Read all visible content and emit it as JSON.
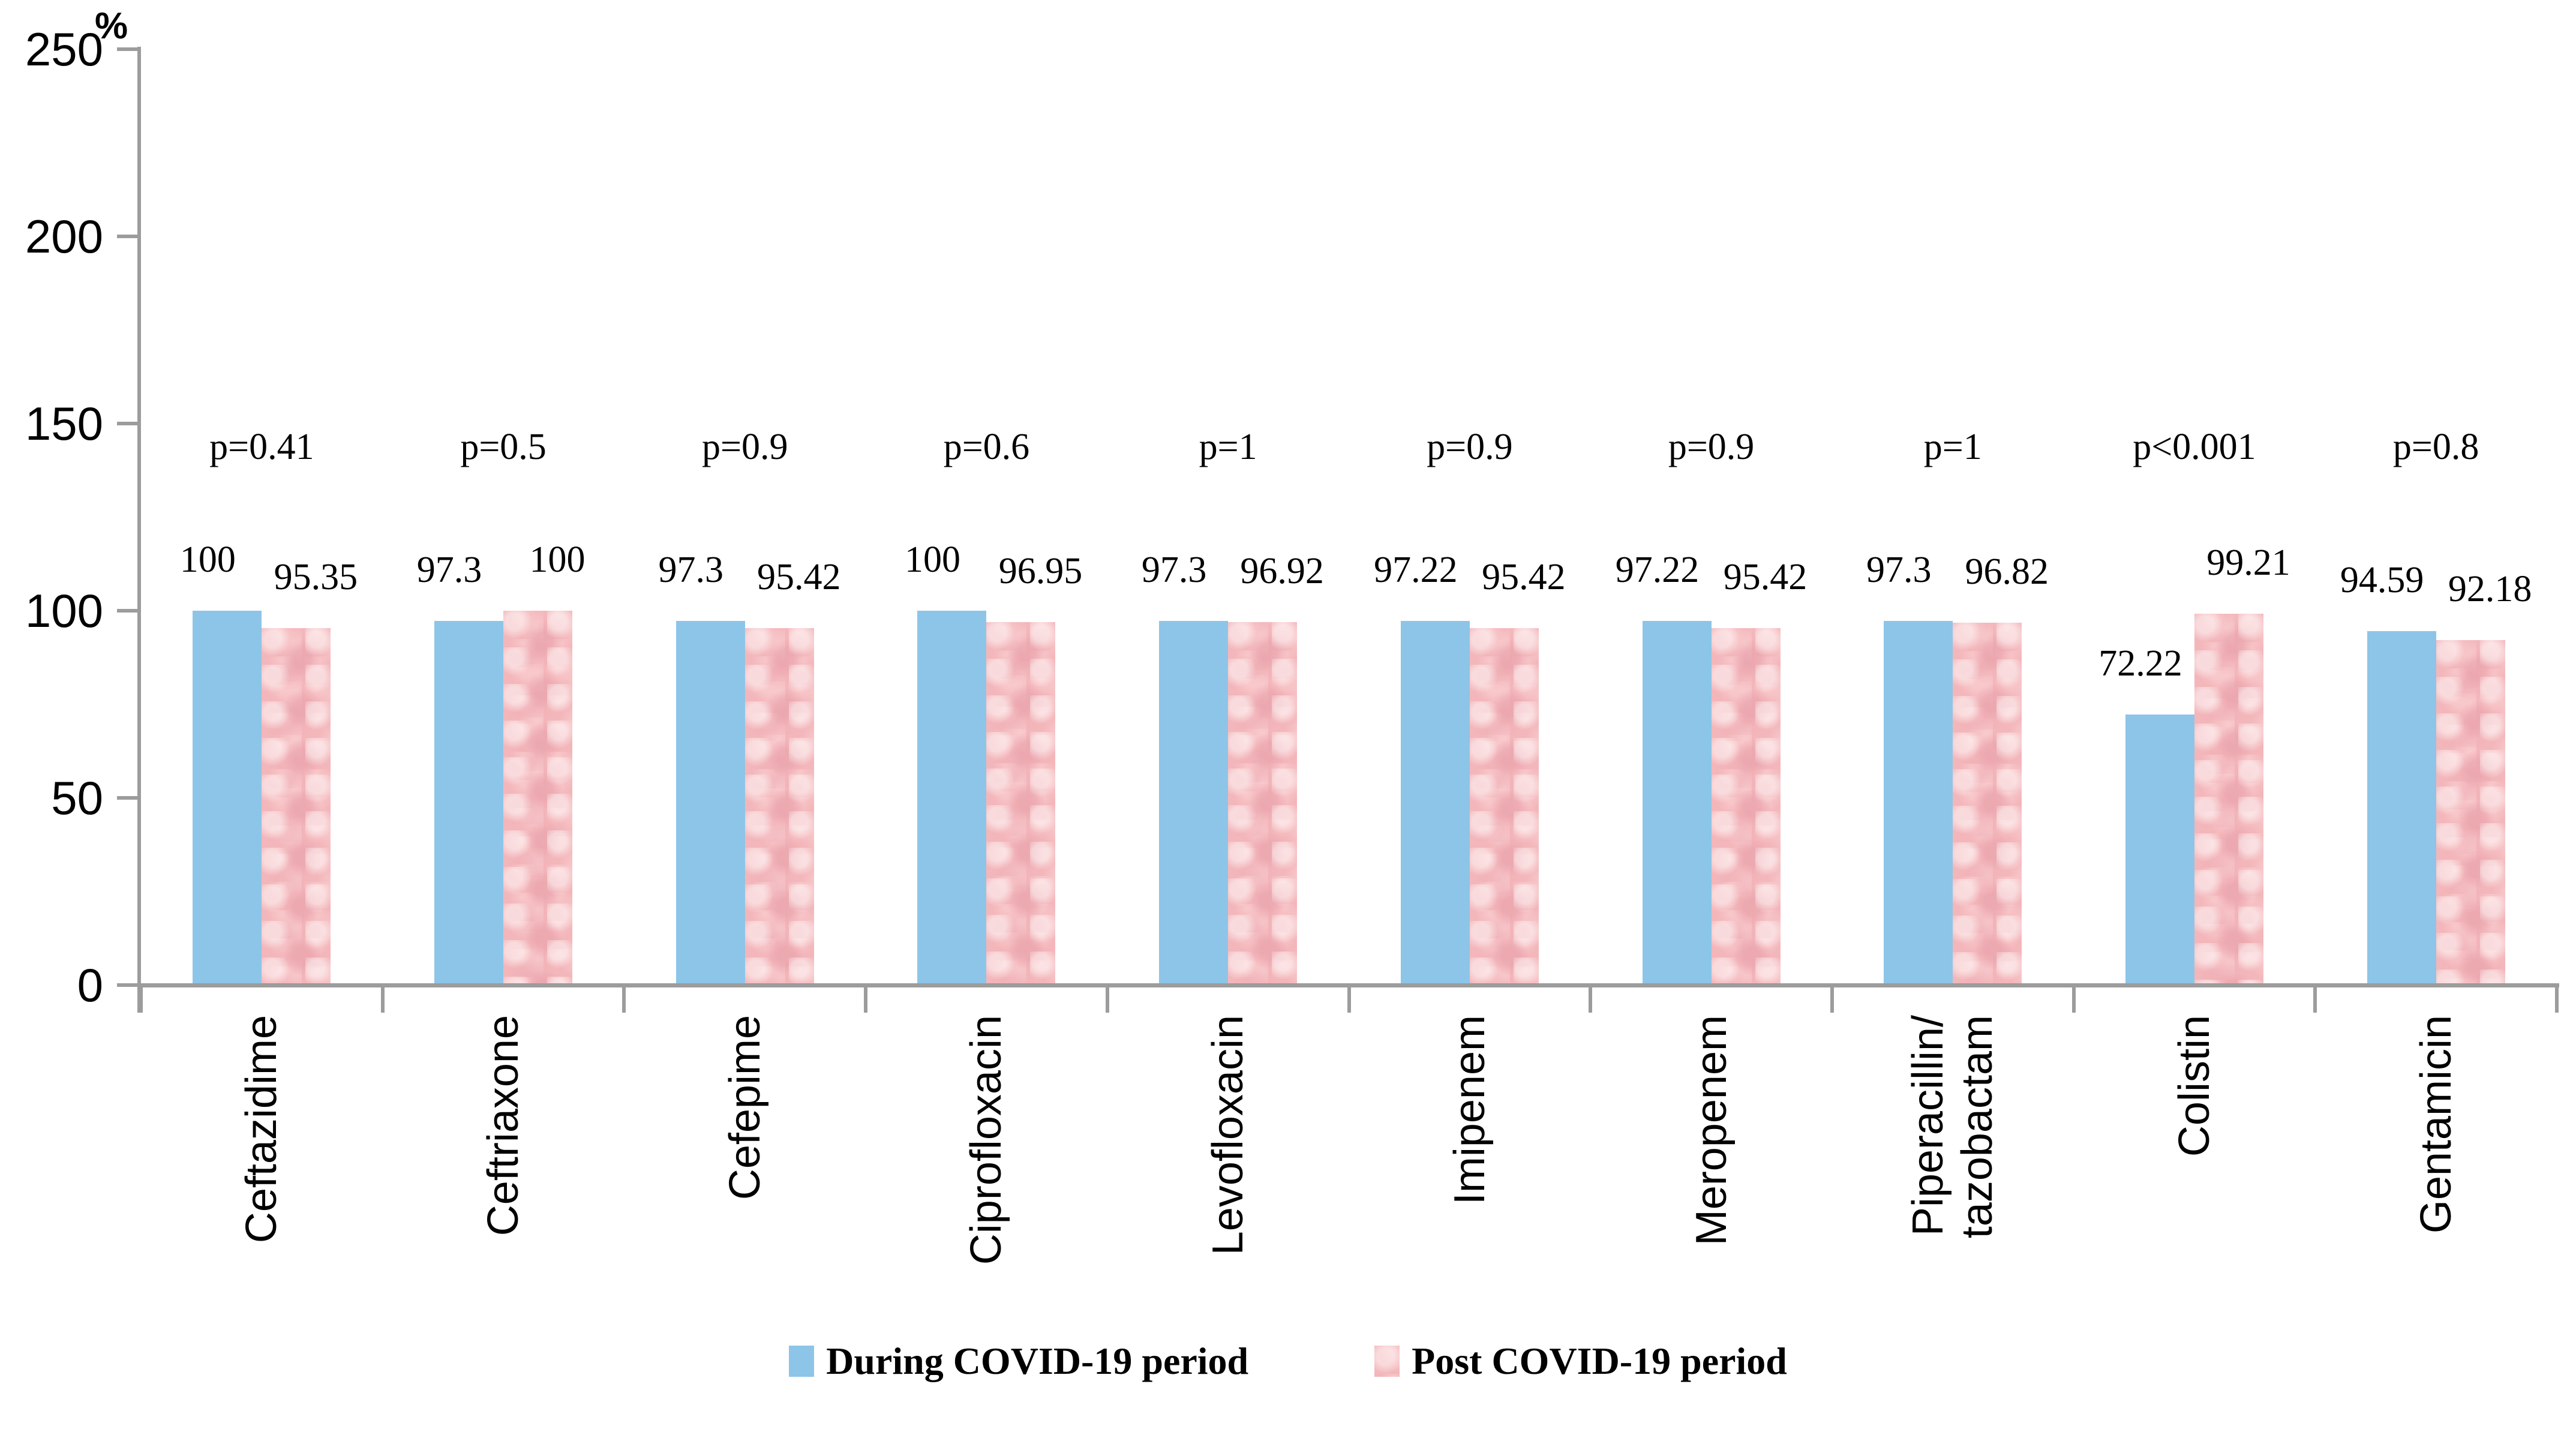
{
  "chart_data": {
    "type": "bar",
    "title": "",
    "ylabel": "%",
    "ylim": [
      0,
      250
    ],
    "yticks": [
      0,
      50,
      100,
      150,
      200,
      250
    ],
    "grid": false,
    "legend_position": "bottom",
    "axis_color": "#9c9c9c",
    "text_color": "#000000",
    "categories": [
      [
        "Ceftazidime"
      ],
      [
        "Ceftriaxone"
      ],
      [
        "Cefepime"
      ],
      [
        "Ciprofloxacin"
      ],
      [
        "Levofloxacin"
      ],
      [
        "Imipenem"
      ],
      [
        "Meropenem"
      ],
      [
        "Piperacillin/",
        "tazobactam"
      ],
      [
        "Colistin"
      ],
      [
        "Gentamicin"
      ]
    ],
    "series": [
      {
        "name": "During COVID-19 period",
        "color": "#8dc5e8",
        "texture": "solid",
        "values": [
          100,
          97.3,
          97.3,
          100,
          97.3,
          97.22,
          97.22,
          97.3,
          72.22,
          94.59
        ],
        "labels": [
          "100",
          "97.3",
          "97.3",
          "100",
          "97.3",
          "97.22",
          "97.22",
          "97.3",
          "72.22",
          "94.59"
        ]
      },
      {
        "name": "Post COVID-19 period",
        "color": "#f3b6ba",
        "texture": "mottled",
        "values": [
          95.35,
          100,
          95.42,
          96.95,
          96.92,
          95.42,
          95.42,
          96.82,
          99.21,
          92.18
        ],
        "labels": [
          "95.35",
          "100",
          "95.42",
          "96.95",
          "96.92",
          "95.42",
          "95.42",
          "96.82",
          "99.21",
          "92.18"
        ]
      }
    ],
    "p_values": [
      "p=0.41",
      "p=0.5",
      "p=0.9",
      "p=0.6",
      "p=1",
      "p=0.9",
      "p=0.9",
      "p=1",
      "p<0.001",
      "p=0.8"
    ]
  }
}
